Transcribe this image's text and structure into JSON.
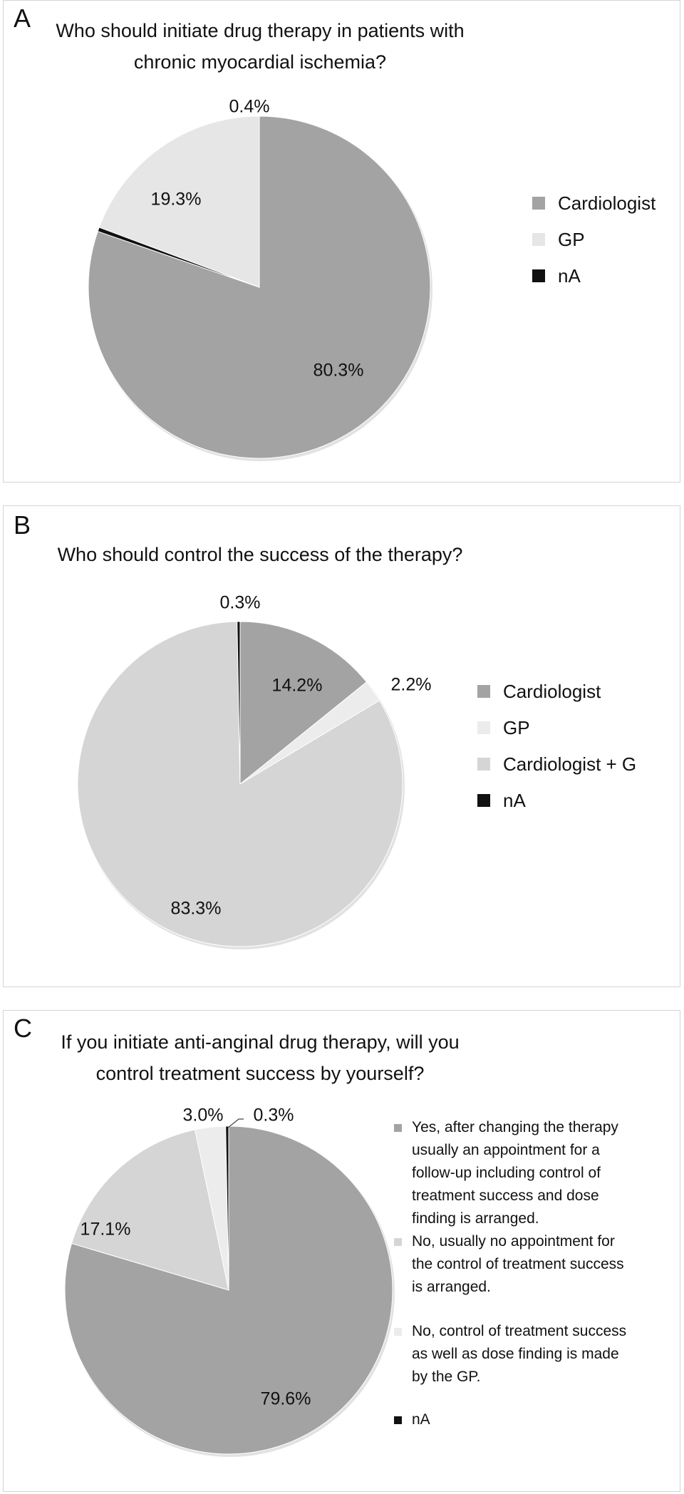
{
  "chart_data": [
    {
      "panel_letter": "A",
      "type": "pie",
      "title_lines": [
        "Who should initiate drug therapy in patients with",
        "chronic myocardial ischemia?"
      ],
      "slices": [
        {
          "name": "Cardiologist",
          "value": 80.3,
          "label": "80.3%",
          "color": "#a3a3a3"
        },
        {
          "name": "nA",
          "value": 0.4,
          "label": "0.4%",
          "color": "#111111"
        },
        {
          "name": "GP",
          "value": 19.3,
          "label": "19.3%",
          "color": "#e6e6e6"
        }
      ],
      "legend": [
        {
          "label": "Cardiologist",
          "color": "#a3a3a3"
        },
        {
          "label": "GP",
          "color": "#e6e6e6"
        },
        {
          "label": "nA",
          "color": "#111111"
        }
      ],
      "legend_position": "right"
    },
    {
      "panel_letter": "B",
      "type": "pie",
      "title_lines": [
        "Who should control the success of the therapy?"
      ],
      "slices": [
        {
          "name": "Cardiologist",
          "value": 14.2,
          "label": "14.2%",
          "color": "#a3a3a3"
        },
        {
          "name": "GP",
          "value": 2.2,
          "label": "2.2%",
          "color": "#ececec"
        },
        {
          "name": "Cardiologist + G",
          "value": 83.3,
          "label": "83.3%",
          "color": "#d5d5d5"
        },
        {
          "name": "nA",
          "value": 0.3,
          "label": "0.3%",
          "color": "#111111"
        }
      ],
      "legend": [
        {
          "label": "Cardiologist",
          "color": "#a3a3a3"
        },
        {
          "label": "GP",
          "color": "#ececec"
        },
        {
          "label": "Cardiologist + G",
          "color": "#d5d5d5"
        },
        {
          "label": "nA",
          "color": "#111111"
        }
      ],
      "legend_position": "right"
    },
    {
      "panel_letter": "C",
      "type": "pie",
      "title_lines": [
        "If you initiate anti-anginal drug therapy, will you",
        "control treatment success by yourself?"
      ],
      "slices": [
        {
          "name": "Yes",
          "value": 79.6,
          "label": "79.6%",
          "color": "#a3a3a3"
        },
        {
          "name": "No, usually no appointment",
          "value": 17.1,
          "label": "17.1%",
          "color": "#d5d5d5"
        },
        {
          "name": "No, control by the GP",
          "value": 3.0,
          "label": "3.0%",
          "color": "#ececec"
        },
        {
          "name": "nA",
          "value": 0.3,
          "label": "0.3%",
          "color": "#111111"
        }
      ],
      "legend": [
        {
          "label_lines": [
            "Yes, after changing the therapy",
            "usually an appointment for a",
            "follow-up including control of",
            "treatment success and dose",
            "finding is arranged."
          ],
          "color": "#a3a3a3"
        },
        {
          "label_lines": [
            "No, usually no appointment for",
            "the control of treatment success",
            "is arranged."
          ],
          "color": "#d5d5d5"
        },
        {
          "label_lines": [
            "No, control of treatment success",
            "as well as dose finding is made",
            "by the GP."
          ],
          "color": "#ececec"
        },
        {
          "label_lines": [
            "nA"
          ],
          "color": "#111111"
        }
      ],
      "legend_position": "right"
    }
  ]
}
